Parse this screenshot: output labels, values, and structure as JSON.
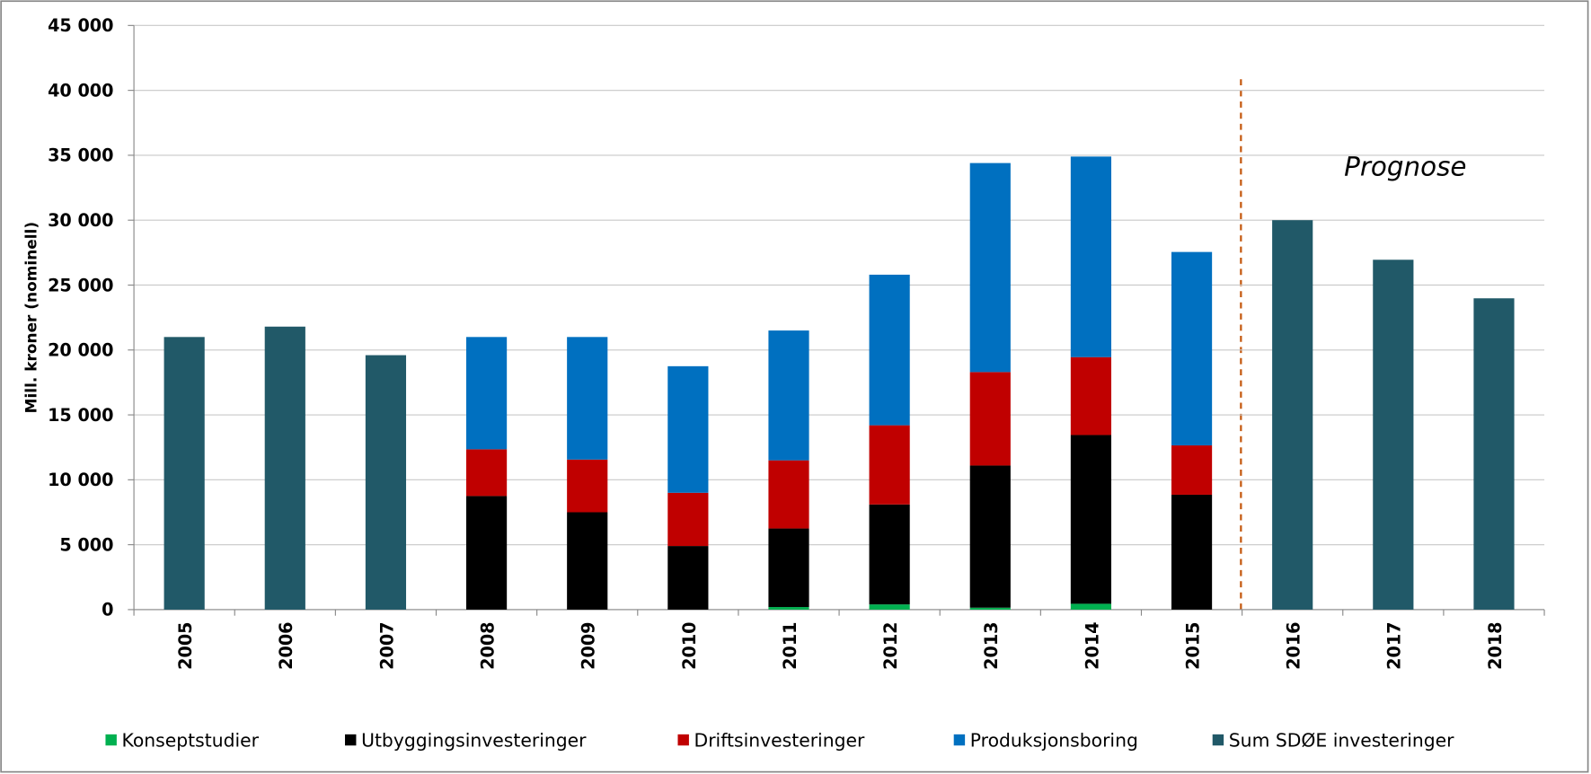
{
  "chart_data": {
    "type": "stacked_bar",
    "y_label": "Mill. kroner (nominell)",
    "annotation": "Prognose",
    "categories": [
      "2005",
      "2006",
      "2007",
      "2008",
      "2009",
      "2010",
      "2011",
      "2012",
      "2013",
      "2014",
      "2015",
      "2016",
      "2017",
      "2018"
    ],
    "series": [
      {
        "name": "Konseptstudier",
        "color": "#00b050",
        "values": [
          null,
          null,
          null,
          0,
          0,
          0,
          200,
          400,
          150,
          450,
          0,
          null,
          null,
          null
        ]
      },
      {
        "name": "Utbyggingsinvesteringer",
        "color": "#000000",
        "values": [
          null,
          null,
          null,
          8750,
          7500,
          4900,
          6050,
          7700,
          10950,
          13000,
          8850,
          null,
          null,
          null
        ]
      },
      {
        "name": "Driftsinvesteringer",
        "color": "#c00000",
        "values": [
          null,
          null,
          null,
          3600,
          4060,
          4100,
          5250,
          6100,
          7200,
          6000,
          3800,
          null,
          null,
          null
        ]
      },
      {
        "name": "Produksjonsboring",
        "color": "#0070c0",
        "values": [
          null,
          null,
          null,
          8650,
          9440,
          9750,
          10000,
          11600,
          16100,
          15450,
          14900,
          null,
          null,
          null
        ]
      },
      {
        "name": "Sum SDØE investeringer",
        "color": "#215968",
        "values": [
          21000,
          21800,
          19600,
          null,
          null,
          null,
          null,
          null,
          null,
          null,
          null,
          30000,
          26950,
          23980
        ]
      }
    ],
    "ylim": [
      0,
      45000
    ],
    "yticks": [
      0,
      {
        "value": 5000,
        "label": "5 000"
      },
      {
        "value": 10000,
        "label": "10 000"
      },
      {
        "value": 15000,
        "label": "15 000"
      },
      {
        "value": 20000,
        "label": "20 000"
      },
      {
        "value": 25000,
        "label": "25 000"
      },
      {
        "value": 30000,
        "label": "30 000"
      },
      {
        "value": 35000,
        "label": "35 000"
      },
      {
        "value": 40000,
        "label": "40 000"
      },
      {
        "value": 45000,
        "label": "45 000"
      }
    ],
    "grid": true,
    "legend": "bottom"
  }
}
